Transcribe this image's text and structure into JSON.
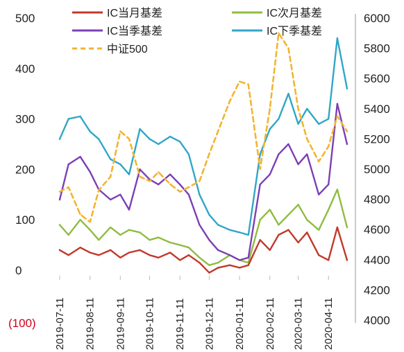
{
  "chart_data": {
    "type": "line",
    "title": "",
    "x_ticks": [
      "2019-07-11",
      "2019-08-11",
      "2019-09-11",
      "2019-10-11",
      "2019-11-11",
      "2019-12-11",
      "2020-01-11",
      "2020-02-11",
      "2020-03-11",
      "2020-04-11"
    ],
    "x_range": [
      "2019-07-11",
      "2020-04-30"
    ],
    "left_axis": {
      "ticks": [
        "500",
        "400",
        "300",
        "200",
        "100",
        "0",
        "(100)"
      ],
      "tick_values": [
        500,
        400,
        300,
        200,
        100,
        0,
        -100
      ],
      "negative_color": "#d0021b",
      "ylim": [
        -100,
        500
      ]
    },
    "right_axis": {
      "ticks": [
        "6000",
        "5800",
        "5600",
        "5400",
        "5200",
        "5000",
        "4800",
        "4600",
        "4400",
        "4200",
        "4000"
      ],
      "tick_values": [
        6000,
        5800,
        5600,
        5400,
        5200,
        5000,
        4800,
        4600,
        4400,
        4200,
        4000
      ],
      "ylim": [
        4000,
        6000
      ]
    },
    "legend": {
      "placement": "top",
      "items": [
        {
          "name": "IC当月基差",
          "color": "#c0392b",
          "style": "solid"
        },
        {
          "name": "IC次月基差",
          "color": "#8fbc3f",
          "style": "solid"
        },
        {
          "name": "IC当季基差",
          "color": "#7b3fb5",
          "style": "solid"
        },
        {
          "name": "IC下季基差",
          "color": "#2fa6c7",
          "style": "solid"
        },
        {
          "name": "中证500",
          "color": "#f2b530",
          "style": "dashed"
        }
      ]
    },
    "series": [
      {
        "name": "IC当月基差",
        "axis": "left",
        "color": "#c0392b",
        "style": "solid",
        "points": [
          [
            "2019-07-11",
            40
          ],
          [
            "2019-07-20",
            30
          ],
          [
            "2019-08-01",
            45
          ],
          [
            "2019-08-11",
            35
          ],
          [
            "2019-08-20",
            30
          ],
          [
            "2019-09-01",
            40
          ],
          [
            "2019-09-11",
            25
          ],
          [
            "2019-09-20",
            35
          ],
          [
            "2019-10-01",
            40
          ],
          [
            "2019-10-11",
            30
          ],
          [
            "2019-10-20",
            25
          ],
          [
            "2019-11-01",
            35
          ],
          [
            "2019-11-11",
            20
          ],
          [
            "2019-11-20",
            30
          ],
          [
            "2019-12-01",
            15
          ],
          [
            "2019-12-11",
            -5
          ],
          [
            "2019-12-20",
            5
          ],
          [
            "2020-01-01",
            10
          ],
          [
            "2020-01-11",
            5
          ],
          [
            "2020-01-20",
            10
          ],
          [
            "2020-02-01",
            60
          ],
          [
            "2020-02-11",
            40
          ],
          [
            "2020-02-20",
            70
          ],
          [
            "2020-03-01",
            80
          ],
          [
            "2020-03-11",
            55
          ],
          [
            "2020-03-20",
            75
          ],
          [
            "2020-04-01",
            30
          ],
          [
            "2020-04-11",
            20
          ],
          [
            "2020-04-20",
            85
          ],
          [
            "2020-04-30",
            20
          ]
        ]
      },
      {
        "name": "IC次月基差",
        "axis": "left",
        "color": "#8fbc3f",
        "style": "solid",
        "points": [
          [
            "2019-07-11",
            90
          ],
          [
            "2019-07-20",
            70
          ],
          [
            "2019-08-01",
            100
          ],
          [
            "2019-08-11",
            80
          ],
          [
            "2019-08-20",
            60
          ],
          [
            "2019-09-01",
            85
          ],
          [
            "2019-09-11",
            70
          ],
          [
            "2019-09-20",
            80
          ],
          [
            "2019-10-01",
            75
          ],
          [
            "2019-10-11",
            60
          ],
          [
            "2019-10-20",
            65
          ],
          [
            "2019-11-01",
            55
          ],
          [
            "2019-11-11",
            50
          ],
          [
            "2019-11-20",
            45
          ],
          [
            "2019-12-01",
            25
          ],
          [
            "2019-12-11",
            10
          ],
          [
            "2019-12-20",
            15
          ],
          [
            "2020-01-01",
            30
          ],
          [
            "2020-01-11",
            20
          ],
          [
            "2020-01-20",
            15
          ],
          [
            "2020-02-01",
            100
          ],
          [
            "2020-02-11",
            120
          ],
          [
            "2020-02-20",
            90
          ],
          [
            "2020-03-01",
            110
          ],
          [
            "2020-03-11",
            130
          ],
          [
            "2020-03-20",
            100
          ],
          [
            "2020-04-01",
            80
          ],
          [
            "2020-04-11",
            120
          ],
          [
            "2020-04-20",
            160
          ],
          [
            "2020-04-30",
            85
          ]
        ]
      },
      {
        "name": "IC当季基差",
        "axis": "left",
        "color": "#7b3fb5",
        "style": "solid",
        "points": [
          [
            "2019-07-11",
            140
          ],
          [
            "2019-07-20",
            210
          ],
          [
            "2019-08-01",
            225
          ],
          [
            "2019-08-11",
            195
          ],
          [
            "2019-08-20",
            160
          ],
          [
            "2019-09-01",
            140
          ],
          [
            "2019-09-11",
            150
          ],
          [
            "2019-09-20",
            120
          ],
          [
            "2019-10-01",
            200
          ],
          [
            "2019-10-11",
            180
          ],
          [
            "2019-10-20",
            170
          ],
          [
            "2019-11-01",
            190
          ],
          [
            "2019-11-11",
            170
          ],
          [
            "2019-11-20",
            150
          ],
          [
            "2019-12-01",
            90
          ],
          [
            "2019-12-11",
            60
          ],
          [
            "2019-12-20",
            40
          ],
          [
            "2020-01-01",
            30
          ],
          [
            "2020-01-11",
            20
          ],
          [
            "2020-01-20",
            25
          ],
          [
            "2020-02-01",
            170
          ],
          [
            "2020-02-11",
            190
          ],
          [
            "2020-02-20",
            230
          ],
          [
            "2020-03-01",
            250
          ],
          [
            "2020-03-11",
            210
          ],
          [
            "2020-03-20",
            230
          ],
          [
            "2020-04-01",
            150
          ],
          [
            "2020-04-11",
            170
          ],
          [
            "2020-04-20",
            330
          ],
          [
            "2020-04-30",
            250
          ]
        ]
      },
      {
        "name": "IC下季基差",
        "axis": "left",
        "color": "#2fa6c7",
        "style": "solid",
        "points": [
          [
            "2019-07-11",
            260
          ],
          [
            "2019-07-20",
            300
          ],
          [
            "2019-08-01",
            305
          ],
          [
            "2019-08-11",
            275
          ],
          [
            "2019-08-20",
            260
          ],
          [
            "2019-09-01",
            220
          ],
          [
            "2019-09-11",
            210
          ],
          [
            "2019-09-20",
            190
          ],
          [
            "2019-10-01",
            280
          ],
          [
            "2019-10-11",
            260
          ],
          [
            "2019-10-20",
            250
          ],
          [
            "2019-11-01",
            265
          ],
          [
            "2019-11-11",
            255
          ],
          [
            "2019-11-20",
            230
          ],
          [
            "2019-12-01",
            150
          ],
          [
            "2019-12-11",
            110
          ],
          [
            "2019-12-20",
            90
          ],
          [
            "2020-01-01",
            80
          ],
          [
            "2020-01-11",
            75
          ],
          [
            "2020-01-20",
            70
          ],
          [
            "2020-02-01",
            230
          ],
          [
            "2020-02-11",
            280
          ],
          [
            "2020-02-20",
            300
          ],
          [
            "2020-03-01",
            350
          ],
          [
            "2020-03-11",
            290
          ],
          [
            "2020-03-20",
            320
          ],
          [
            "2020-04-01",
            290
          ],
          [
            "2020-04-11",
            300
          ],
          [
            "2020-04-20",
            460
          ],
          [
            "2020-04-30",
            360
          ]
        ]
      },
      {
        "name": "中证500",
        "axis": "right",
        "color": "#f2b530",
        "style": "dashed",
        "points": [
          [
            "2019-07-11",
            4850
          ],
          [
            "2019-07-20",
            4880
          ],
          [
            "2019-08-01",
            4700
          ],
          [
            "2019-08-11",
            4650
          ],
          [
            "2019-08-20",
            4860
          ],
          [
            "2019-09-01",
            4950
          ],
          [
            "2019-09-11",
            5250
          ],
          [
            "2019-09-20",
            5200
          ],
          [
            "2019-10-01",
            4950
          ],
          [
            "2019-10-11",
            4920
          ],
          [
            "2019-10-20",
            4980
          ],
          [
            "2019-11-01",
            4900
          ],
          [
            "2019-11-11",
            4850
          ],
          [
            "2019-11-20",
            4880
          ],
          [
            "2019-12-01",
            4920
          ],
          [
            "2019-12-11",
            5100
          ],
          [
            "2019-12-20",
            5250
          ],
          [
            "2020-01-01",
            5450
          ],
          [
            "2020-01-11",
            5580
          ],
          [
            "2020-01-20",
            5560
          ],
          [
            "2020-02-01",
            5000
          ],
          [
            "2020-02-11",
            5400
          ],
          [
            "2020-02-20",
            5900
          ],
          [
            "2020-03-01",
            5800
          ],
          [
            "2020-03-11",
            5400
          ],
          [
            "2020-03-20",
            5200
          ],
          [
            "2020-04-01",
            5050
          ],
          [
            "2020-04-11",
            5150
          ],
          [
            "2020-04-20",
            5350
          ],
          [
            "2020-04-30",
            5250
          ]
        ]
      }
    ]
  }
}
